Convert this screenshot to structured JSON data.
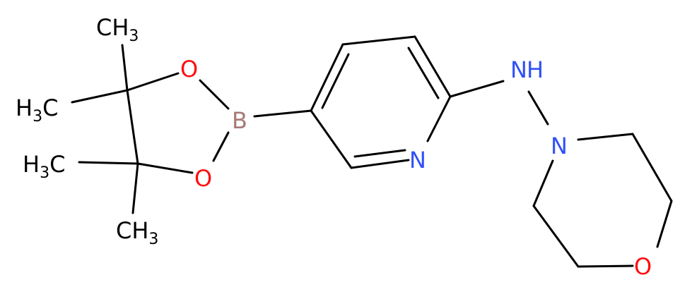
{
  "molecule": {
    "atoms": [
      {
        "parts": [
          "CH",
          "3"
        ]
      },
      {
        "parts": [
          "H",
          "3",
          "C"
        ]
      },
      {
        "parts": [
          "H",
          "3",
          "C"
        ]
      },
      {
        "parts": [
          "CH",
          "3"
        ]
      },
      {
        "parts": [
          "O"
        ]
      },
      {
        "parts": [
          "O"
        ]
      },
      {
        "parts": [
          "B"
        ]
      },
      {
        "parts": [
          "N"
        ]
      },
      {
        "parts": [
          "H"
        ]
      },
      {
        "parts": [
          "N"
        ]
      },
      {
        "parts": [
          "N"
        ]
      },
      {
        "parts": [
          "O"
        ]
      }
    ]
  }
}
